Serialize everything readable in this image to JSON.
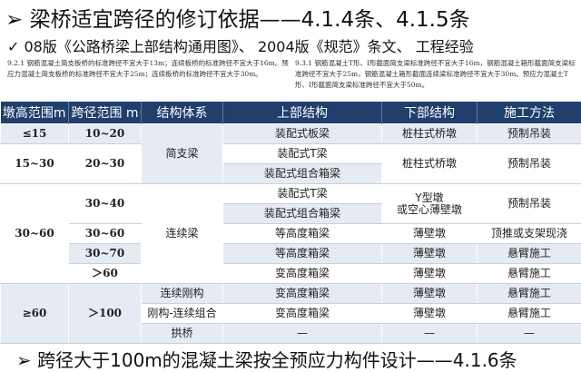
{
  "title": "➢ 梁桥适宜跨径的修订依据——4.1.4条、4.1.5条",
  "subtitle": "✓ 08版《公路桥梁上部结构通用图》、 2004版《规范》条文、 工程经验",
  "quotes": {
    "left": "9.2.1  钢筋混凝土简支板桥的标准跨径不宜大于13m；连续板桥的标准跨径不宜大于16m。预应力混凝土简支板桥的标准跨径不宜大于25m；连续板桥的标准跨径不宜大于30m。",
    "right": "9.3.1  钢筋混凝土T形、I形截面简支梁标准跨径不宜大于16m，钢筋混凝土箱形截面简支梁标准跨径不宜大于25m，钢筋混凝土箱形截面连续梁标准跨径不宜大于30m。预应力混凝土T形、I形截面简支梁标准跨径不宜大于50m。"
  },
  "table": {
    "headers": [
      "墩高范围m",
      "跨径范围 m",
      "结构体系",
      "上部结构",
      "下部结构",
      "施工方法"
    ],
    "rows": [
      [
        {
          "t": "≤15",
          "c": "l",
          "n": 1
        },
        {
          "t": "10~20",
          "c": "l",
          "n": 1
        },
        {
          "t": "简支梁",
          "c": "l",
          "rs": 3
        },
        {
          "t": "装配式板梁",
          "c": "l"
        },
        {
          "t": "桩柱式桥墩",
          "c": "l"
        },
        {
          "t": "预制吊装",
          "c": "l"
        }
      ],
      [
        {
          "t": "15~30",
          "c": "w",
          "rs": 2,
          "n": 1
        },
        {
          "t": "20~30",
          "c": "w",
          "rs": 2,
          "n": 1
        },
        {
          "t": "装配式T梁",
          "c": "w"
        },
        {
          "t": "桩柱式桥墩",
          "c": "w",
          "rs": 2
        },
        {
          "t": "预制吊装",
          "c": "w",
          "rs": 2
        }
      ],
      [
        {
          "t": "装配式组合箱梁",
          "c": "l"
        }
      ],
      [
        {
          "t": "30~60",
          "c": "w",
          "rs": 5,
          "n": 1
        },
        {
          "t": "30~40",
          "c": "w",
          "rs": 2,
          "n": 1
        },
        {
          "t": "连续梁",
          "c": "w",
          "rs": 5
        },
        {
          "t": "装配式T梁",
          "c": "w"
        },
        {
          "t": "Y型墩\n或空心薄壁墩",
          "c": "w",
          "rs": 2
        },
        {
          "t": "预制吊装",
          "c": "w",
          "rs": 2
        }
      ],
      [
        {
          "t": "装配式组合箱梁",
          "c": "l"
        }
      ],
      [
        {
          "t": "30~60",
          "c": "w",
          "n": 1
        },
        {
          "t": "等高度箱梁",
          "c": "w"
        },
        {
          "t": "薄壁墩",
          "c": "w"
        },
        {
          "t": "顶推或支架现浇",
          "c": "w"
        }
      ],
      [
        {
          "t": "30~70",
          "c": "l",
          "n": 1
        },
        {
          "t": "等高度箱梁",
          "c": "l"
        },
        {
          "t": "薄壁墩",
          "c": "l"
        },
        {
          "t": "悬臂施工",
          "c": "l"
        }
      ],
      [
        {
          "t": "＞60",
          "c": "w",
          "n": 1
        },
        {
          "t": "变高度箱梁",
          "c": "w"
        },
        {
          "t": "薄壁墩",
          "c": "w"
        },
        {
          "t": "悬臂施工",
          "c": "w"
        }
      ],
      [
        {
          "t": "≥60",
          "c": "l",
          "rs": 3,
          "n": 1
        },
        {
          "t": "＞100",
          "c": "l",
          "rs": 3,
          "n": 1
        },
        {
          "t": "连续刚构",
          "c": "l"
        },
        {
          "t": "变高度箱梁",
          "c": "l"
        },
        {
          "t": "薄壁墩",
          "c": "l"
        },
        {
          "t": "悬臂施工",
          "c": "l"
        }
      ],
      [
        {
          "t": "刚构-连续组合",
          "c": "w"
        },
        {
          "t": "变高度箱梁",
          "c": "w"
        },
        {
          "t": "薄壁墩",
          "c": "w"
        },
        {
          "t": "悬臂施工",
          "c": "w"
        }
      ],
      [
        {
          "t": "拱桥",
          "c": "l"
        },
        {
          "t": "—",
          "c": "l"
        },
        {
          "t": "—",
          "c": "l"
        },
        {
          "t": "—",
          "c": "l"
        }
      ]
    ]
  },
  "footer": "➢ 跨径大于100m的混凝土梁按全预应力构件设计——4.1.6条"
}
